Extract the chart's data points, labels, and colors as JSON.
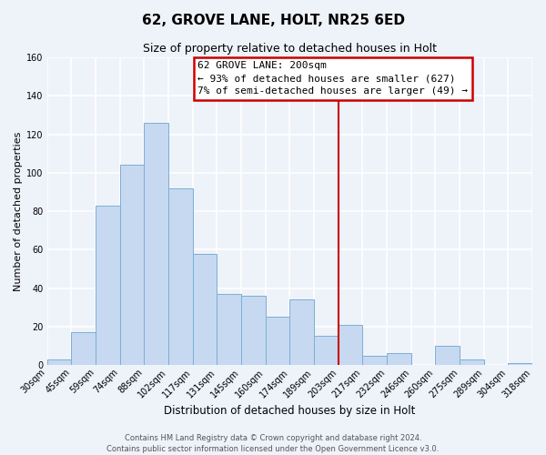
{
  "title": "62, GROVE LANE, HOLT, NR25 6ED",
  "subtitle": "Size of property relative to detached houses in Holt",
  "xlabel": "Distribution of detached houses by size in Holt",
  "ylabel": "Number of detached properties",
  "bin_labels": [
    "30sqm",
    "45sqm",
    "59sqm",
    "74sqm",
    "88sqm",
    "102sqm",
    "117sqm",
    "131sqm",
    "145sqm",
    "160sqm",
    "174sqm",
    "189sqm",
    "203sqm",
    "217sqm",
    "232sqm",
    "246sqm",
    "260sqm",
    "275sqm",
    "289sqm",
    "304sqm",
    "318sqm"
  ],
  "bar_heights": [
    3,
    17,
    83,
    104,
    126,
    92,
    58,
    37,
    36,
    25,
    34,
    15,
    21,
    5,
    6,
    0,
    10,
    3,
    0,
    1
  ],
  "bar_color": "#c6d9f1",
  "bar_edge_color": "#7bafd4",
  "annotation_title": "62 GROVE LANE: 200sqm",
  "annotation_line1": "← 93% of detached houses are smaller (627)",
  "annotation_line2": "7% of semi-detached houses are larger (49) →",
  "annotation_box_color": "#ffffff",
  "annotation_box_edge_color": "#cc0000",
  "vline_color": "#cc0000",
  "vline_x_index": 12,
  "ylim": [
    0,
    160
  ],
  "yticks": [
    0,
    20,
    40,
    60,
    80,
    100,
    120,
    140,
    160
  ],
  "footer1": "Contains HM Land Registry data © Crown copyright and database right 2024.",
  "footer2": "Contains public sector information licensed under the Open Government Licence v3.0.",
  "bg_color": "#eef2f9",
  "grid_color": "#ffffff",
  "title_fontsize": 11,
  "subtitle_fontsize": 9,
  "xlabel_fontsize": 8.5,
  "ylabel_fontsize": 8,
  "tick_fontsize": 7,
  "annotation_fontsize": 8,
  "footer_fontsize": 6
}
